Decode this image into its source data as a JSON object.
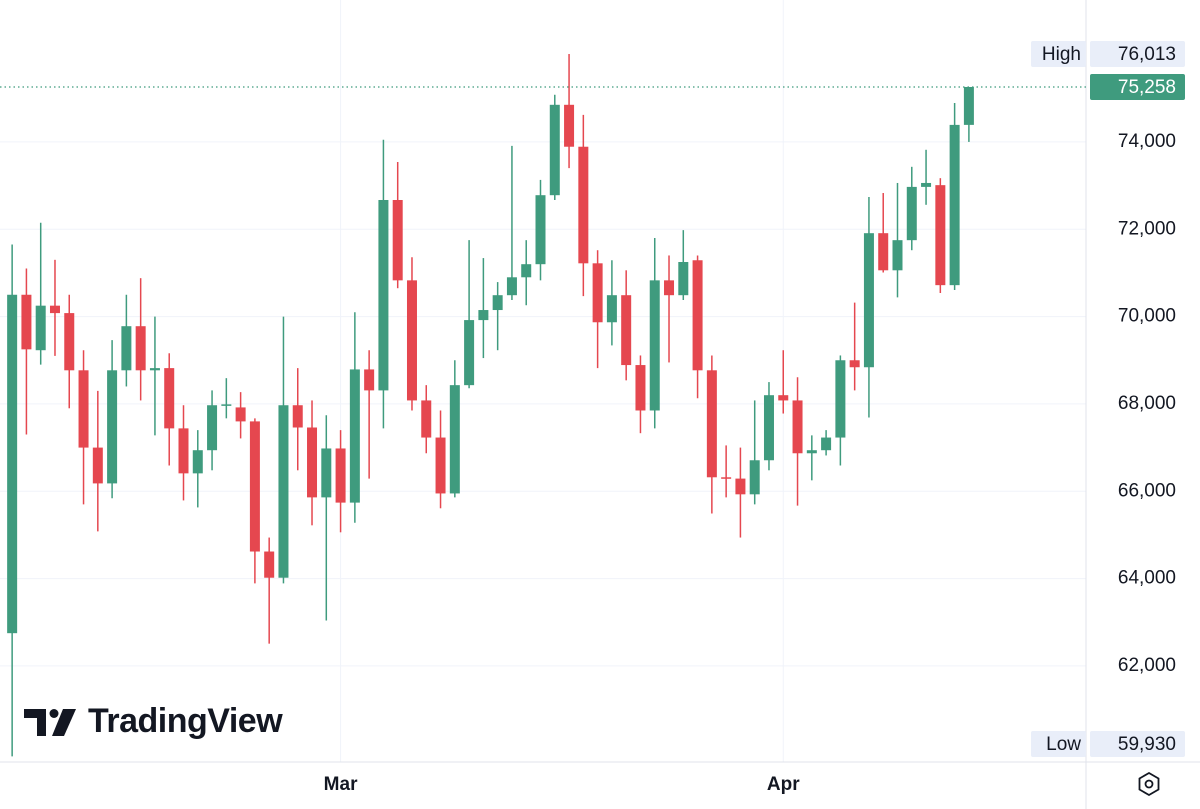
{
  "chart_data": {
    "type": "candlestick",
    "categories": [
      null,
      null,
      null,
      null,
      null,
      null,
      null,
      null,
      null,
      null,
      null,
      null,
      null,
      null,
      null,
      null,
      null,
      null,
      null,
      null,
      null,
      null,
      null,
      "Mar",
      null,
      null,
      null,
      null,
      null,
      null,
      null,
      null,
      null,
      null,
      null,
      null,
      null,
      null,
      null,
      null,
      null,
      null,
      null,
      null,
      null,
      null,
      null,
      null,
      null,
      null,
      null,
      null,
      null,
      null,
      "Apr",
      null,
      null,
      null,
      null,
      null,
      null,
      null,
      null,
      null,
      null,
      null,
      null,
      null
    ],
    "open": [
      62750,
      70500,
      69230,
      70250,
      70080,
      68770,
      67000,
      66180,
      68770,
      69780,
      68770,
      68820,
      67440,
      66410,
      66940,
      67970,
      67920,
      67600,
      64620,
      64020,
      67970,
      67460,
      65860,
      66980,
      65740,
      68790,
      68310,
      72670,
      70830,
      68080,
      67230,
      65950,
      68430,
      69920,
      70150,
      70490,
      70900,
      71200,
      72780,
      74850,
      73890,
      71220,
      69870,
      70490,
      68890,
      67850,
      70830,
      70490,
      71290,
      68770,
      66320,
      66290,
      65930,
      66710,
      68200,
      68080,
      66870,
      66940,
      67230,
      69000,
      68840,
      71910,
      71060,
      71750,
      72970,
      73010,
      70720,
      74390
    ],
    "high": [
      71650,
      71100,
      72150,
      71300,
      70500,
      69230,
      68300,
      69460,
      70500,
      70880,
      70000,
      69160,
      67970,
      67400,
      68310,
      68590,
      68270,
      67670,
      64940,
      70000,
      68820,
      68080,
      67740,
      67400,
      70100,
      69230,
      74050,
      73540,
      71360,
      68430,
      67850,
      69000,
      71750,
      71340,
      70790,
      73910,
      71750,
      73130,
      75080,
      76013,
      74620,
      71520,
      71290,
      71060,
      69110,
      71800,
      71400,
      71980,
      71400,
      69110,
      67050,
      67000,
      68080,
      68500,
      69230,
      68610,
      67280,
      67400,
      69110,
      70320,
      72740,
      72830,
      73060,
      73430,
      73820,
      73170,
      74890,
      75258
    ],
    "low": [
      59930,
      67300,
      68900,
      69100,
      67900,
      65700,
      65080,
      65840,
      68400,
      68080,
      67280,
      66590,
      65790,
      65630,
      66480,
      67670,
      67210,
      63890,
      62510,
      63890,
      66480,
      65220,
      63040,
      65060,
      65280,
      66290,
      67440,
      70650,
      67850,
      66870,
      65610,
      65860,
      68360,
      69050,
      69230,
      70380,
      70260,
      70830,
      72670,
      73400,
      70470,
      68820,
      69340,
      68540,
      67330,
      67440,
      68950,
      70380,
      68130,
      65490,
      65860,
      64940,
      65700,
      66480,
      67780,
      65670,
      66250,
      66820,
      66590,
      68310,
      67690,
      71010,
      70440,
      71520,
      72560,
      70540,
      70610,
      74000
    ],
    "close": [
      70500,
      69250,
      70250,
      70080,
      68770,
      67000,
      66180,
      68770,
      69780,
      68770,
      68820,
      67440,
      66410,
      66940,
      67970,
      67990,
      67600,
      64620,
      64020,
      67970,
      67460,
      65860,
      66980,
      65740,
      68790,
      68310,
      72670,
      70830,
      68080,
      67230,
      65950,
      68430,
      69920,
      70150,
      70490,
      70900,
      71200,
      72780,
      74850,
      73890,
      71220,
      69870,
      70490,
      68890,
      67850,
      70830,
      70490,
      71250,
      68770,
      66320,
      66290,
      65930,
      66710,
      68200,
      68080,
      66870,
      66940,
      67230,
      69000,
      68840,
      71910,
      71060,
      71750,
      72970,
      73060,
      70720,
      74390,
      75258
    ],
    "up_color": "#3f9b7e",
    "down_color": "#e5474f",
    "ylim": [
      59800,
      77250
    ],
    "yticks": [
      {
        "value": 62000,
        "label": "62,000"
      },
      {
        "value": 64000,
        "label": "64,000"
      },
      {
        "value": 66000,
        "label": "66,000"
      },
      {
        "value": 68000,
        "label": "68,000"
      },
      {
        "value": 70000,
        "label": "70,000"
      },
      {
        "value": 72000,
        "label": "72,000"
      },
      {
        "value": 74000,
        "label": "74,000"
      }
    ],
    "grid": true,
    "markers": [
      {
        "name": "High",
        "value": 76013,
        "value_label": "76,013"
      },
      {
        "name": "Low",
        "value": 59930,
        "value_label": "59,930"
      }
    ],
    "last_price": {
      "value": 75258,
      "value_label": "75,258"
    },
    "watermark": "TradingView"
  }
}
